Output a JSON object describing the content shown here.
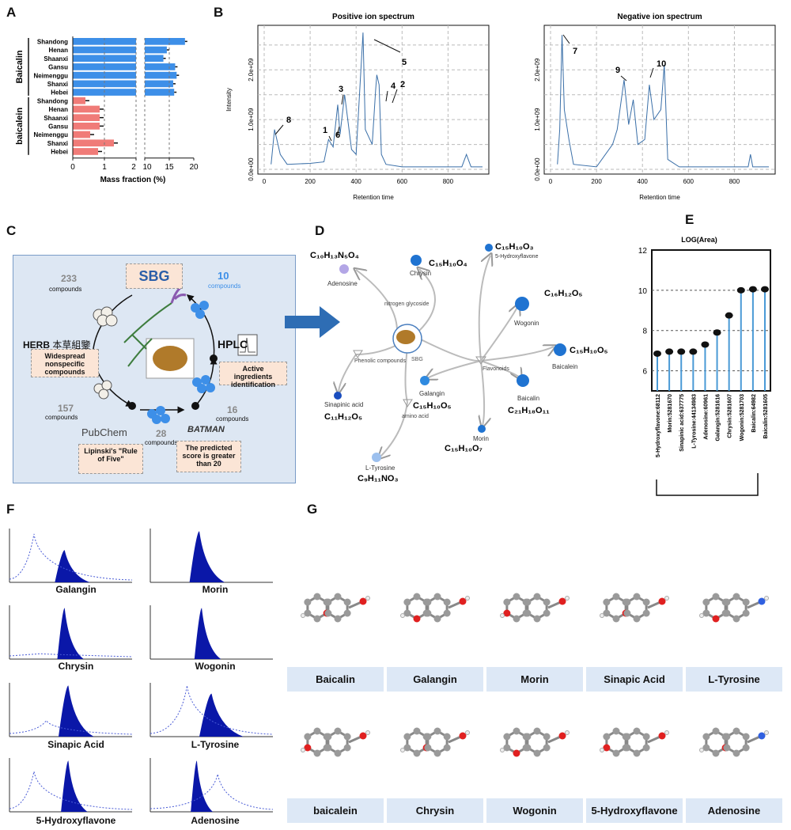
{
  "panel_labels": {
    "A": "A",
    "B": "B",
    "C": "C",
    "D": "D",
    "E": "E",
    "F": "F",
    "G": "G"
  },
  "chart_data": [
    {
      "type": "bar",
      "id": "A",
      "groups": [
        {
          "name": "Baicalin",
          "color": "#3d8fe8",
          "categories": [
            "Shandong",
            "Henan",
            "Shaanxi",
            "Gansu",
            "Neimenggu",
            "Shanxi",
            "Hebei"
          ],
          "values": [
            18.2,
            14.5,
            13.8,
            16.2,
            16.5,
            15.8,
            16.0
          ]
        },
        {
          "name": "baicalein",
          "color": "#f07b78",
          "categories": [
            "Shandong",
            "Henan",
            "Shaanxi",
            "Gansu",
            "Neimenggu",
            "Shanxi",
            "Hebei"
          ],
          "values": [
            0.4,
            0.85,
            0.85,
            0.85,
            0.55,
            1.3,
            0.8
          ]
        }
      ],
      "xlabel": "Mass fraction (%)",
      "xticks": [
        "0",
        "1",
        "2",
        "10",
        "15",
        "20"
      ],
      "axis_break": [
        2,
        10
      ]
    },
    {
      "type": "line",
      "id": "B1",
      "title": "Positive ion spectrum",
      "xlabel": "Retention time",
      "ylabel": "Intensity",
      "xticks": [
        "0",
        "200",
        "400",
        "600",
        "800"
      ],
      "yticks": [
        "0.0e+00",
        "1.0e+09",
        "2.0e+09"
      ],
      "xlim": [
        0,
        950
      ],
      "ylim": [
        0,
        2800000000.0
      ],
      "x": [
        30,
        45,
        55,
        70,
        100,
        200,
        260,
        280,
        300,
        320,
        330,
        350,
        380,
        400,
        430,
        440,
        470,
        485,
        490,
        500,
        510,
        530,
        600,
        800,
        860,
        880,
        900,
        950
      ],
      "y": [
        0.1,
        0.8,
        0.6,
        0.3,
        0.1,
        0.12,
        0.15,
        0.6,
        0.45,
        1.3,
        0.7,
        1.5,
        0.4,
        0.3,
        2.75,
        0.8,
        0.5,
        1.6,
        1.9,
        1.7,
        0.3,
        0.1,
        0.05,
        0.05,
        0.05,
        0.3,
        0.05,
        0.05
      ],
      "peak_labels": [
        "8",
        "1",
        "6",
        "3",
        "5",
        "4",
        "2"
      ]
    },
    {
      "type": "line",
      "id": "B2",
      "title": "Negative ion spectrum",
      "xlabel": "Retention time",
      "ylabel": "",
      "xticks": [
        "0",
        "200",
        "400",
        "600",
        "800"
      ],
      "yticks": [
        "0.0e+00",
        "1.0e+09",
        "2.0e+09"
      ],
      "xlim": [
        0,
        950
      ],
      "ylim": [
        0,
        2800000000.0
      ],
      "x": [
        30,
        40,
        50,
        60,
        80,
        100,
        200,
        270,
        290,
        320,
        340,
        360,
        380,
        410,
        430,
        450,
        480,
        495,
        510,
        560,
        800,
        860,
        870,
        880,
        950
      ],
      "y": [
        0.1,
        0.8,
        2.7,
        1.2,
        0.6,
        0.1,
        0.05,
        0.5,
        0.8,
        1.8,
        0.9,
        1.4,
        0.5,
        0.6,
        1.7,
        1.0,
        1.2,
        2.1,
        0.2,
        0.05,
        0.05,
        0.05,
        0.3,
        0.05,
        0.05
      ],
      "peak_labels": [
        "7",
        "9",
        "10"
      ]
    },
    {
      "type": "lollipop",
      "id": "E",
      "title": "LOG(Area)",
      "categories": [
        "5-Hydroxyflavone:68112",
        "Morin:5281670",
        "Sinapinic acid:637775",
        "L-Tyrosine:44134983",
        "Adenosine:60961",
        "Galangin:5281616",
        "Chrysin:5281607",
        "Wogonin:5281703",
        "Baicalin:64982",
        "Baicalin:5281605"
      ],
      "values": [
        6.85,
        6.95,
        6.95,
        6.95,
        7.3,
        7.9,
        8.75,
        10.0,
        10.05,
        10.05
      ],
      "ylim": [
        5,
        12
      ],
      "yticks": [
        "6",
        "8",
        "10",
        "12"
      ]
    }
  ],
  "panelC": {
    "sbg": "SBG",
    "herb": "HERB",
    "herb_cn": "本草組鑒",
    "c233": "233",
    "c10": "10",
    "c157": "157",
    "c28": "28",
    "c16": "16",
    "compounds": "compounds",
    "hplc": "HPLC",
    "pubchem": "PubChem",
    "batman": "BATMAN",
    "note1": "Widespread nonspecific compounds",
    "note2": "Active ingredients identification",
    "note3": "Lipinski's \"Rule of Five\"",
    "note4": "The predicted score is greater than 20"
  },
  "panelD": {
    "center": "SBG",
    "hubs": {
      "n": "nitrogen glycoside",
      "f": "Flavonoids",
      "p": "Phenolic compounds",
      "a": "amino acid"
    },
    "nodes": {
      "adenosine": {
        "name": "Adenosine",
        "f": "C₁₀H₁₃N₅O₄"
      },
      "chrysin": {
        "name": "Chrysin",
        "f": "C₁₅H₁₀O₄"
      },
      "hydroxyflavone": {
        "name": "5-Hydroxyflavone",
        "f": "C₁₅H₁₀O₃"
      },
      "wogonin": {
        "name": "Wogonin",
        "f": "C₁₆H₁₂O₅"
      },
      "baicalein": {
        "name": "Baicalein",
        "f": "C₁₅H₁₀O₅"
      },
      "baicalin": {
        "name": "Baicalin",
        "f": "C₂₁H₁₈O₁₁"
      },
      "galangin": {
        "name": "Galangin",
        "f": "C₁₅H₁₀O₅"
      },
      "morin": {
        "name": "Morin",
        "f": "C₁₅H₁₀O₇"
      },
      "sinapinic": {
        "name": "Sinapinic acid",
        "f": "C₁₁H₁₂O₅"
      },
      "tyrosine": {
        "name": "L-Tyrosine",
        "f": "C₉H₁₁NO₃"
      }
    }
  },
  "panelF": {
    "labels": [
      "Galangin",
      "Morin",
      "Chrysin",
      "Wogonin",
      "Sinapic Acid",
      "L-Tyrosine",
      "5-Hydroxyflavone",
      "Adenosine"
    ]
  },
  "panelG": {
    "labels": [
      "Baicalin",
      "Galangin",
      "Morin",
      "Sinapic Acid",
      "L-Tyrosine",
      "baicalein",
      "Chrysin",
      "Wogonin",
      "5-Hydroxyflavone",
      "Adenosine"
    ]
  },
  "colors": {
    "accent": "#3d8fe8",
    "baicalein": "#f07b78",
    "line": "#3a6fa8",
    "lollipop": "#4a9ad6",
    "chrom": "#0a17a8"
  }
}
